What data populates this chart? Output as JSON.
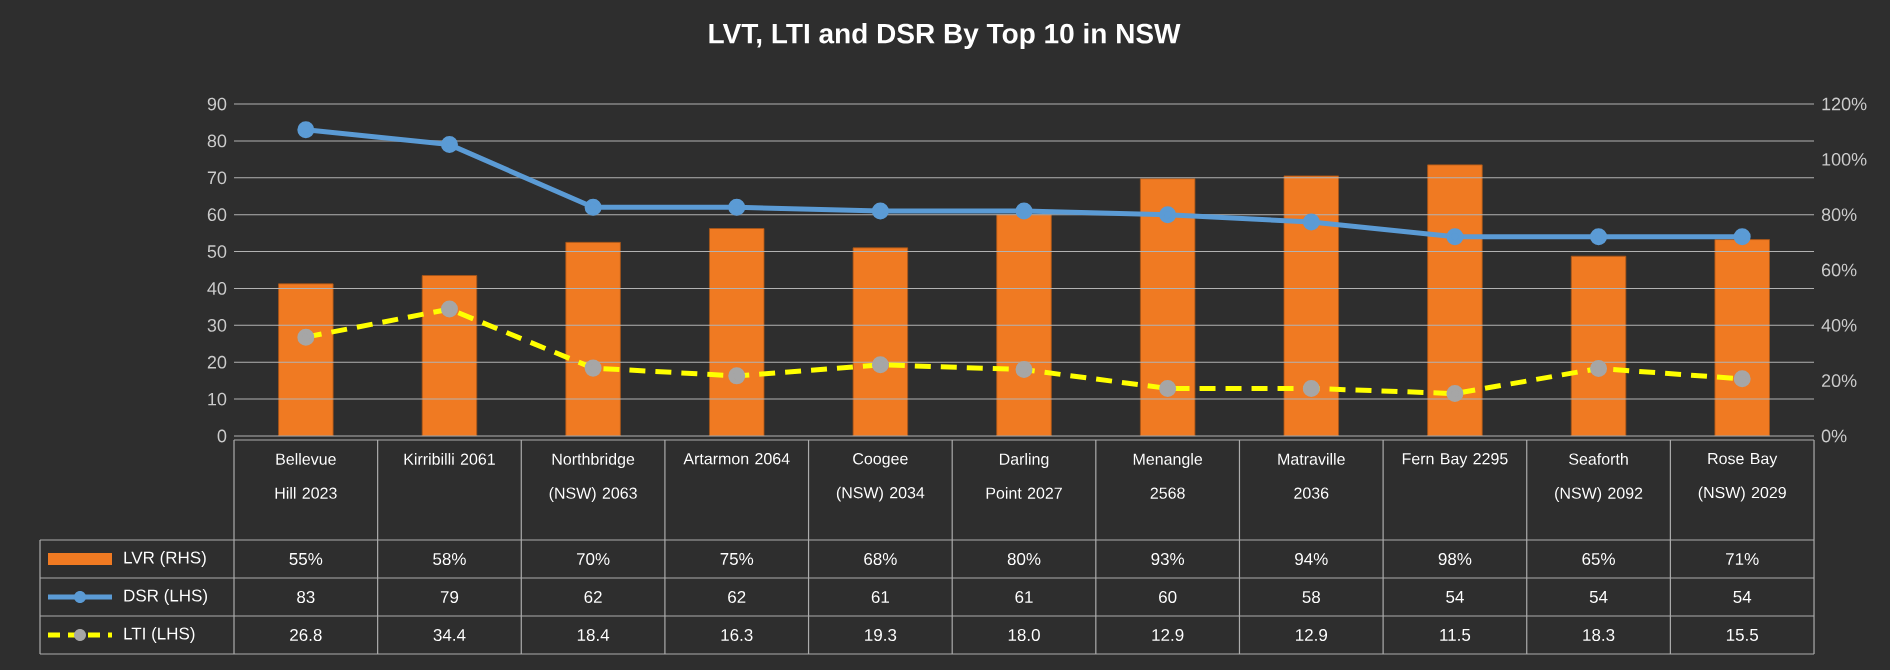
{
  "chart_data": {
    "type": "bar",
    "title": "LVT, LTI and DSR By Top 10 in NSW",
    "categories": [
      "Bellevue Hill 2023",
      "Kirribilli 2061",
      "Northbridge (NSW) 2063",
      "Artarmon 2064",
      "Coogee (NSW) 2034",
      "Darling Point 2027",
      "Menangle 2568",
      "Matraville 2036",
      "Fern Bay 2295",
      "Seaforth (NSW) 2092",
      "Rose Bay (NSW) 2029"
    ],
    "series": [
      {
        "name": "LVR (RHS)",
        "axis": "y2",
        "color": "#f07a22",
        "values": [
          55,
          58,
          70,
          75,
          68,
          80,
          93,
          94,
          98,
          65,
          71
        ],
        "value_labels": [
          "55%",
          "58%",
          "70%",
          "75%",
          "68%",
          "80%",
          "93%",
          "94%",
          "98%",
          "65%",
          "71%"
        ]
      },
      {
        "name": "DSR (LHS)",
        "type": "line",
        "color": "#5b9bd5",
        "marker": "circle",
        "line_style": "solid",
        "values": [
          83,
          79,
          62,
          62,
          61,
          61,
          60,
          58,
          54,
          54,
          54
        ],
        "value_labels": [
          "83",
          "79",
          "62",
          "62",
          "61",
          "61",
          "60",
          "58",
          "54",
          "54",
          "54"
        ]
      },
      {
        "name": "LTI (LHS)",
        "type": "line",
        "color": "#ffff00",
        "marker": "circle",
        "line_style": "dashed",
        "values": [
          26.8,
          34.4,
          18.4,
          16.3,
          19.3,
          18.0,
          12.9,
          12.9,
          11.5,
          18.3,
          15.5
        ],
        "value_labels": [
          "26.8",
          "34.4",
          "18.4",
          "16.3",
          "19.3",
          "18.0",
          "12.9",
          "12.9",
          "11.5",
          "18.3",
          "15.5"
        ]
      }
    ],
    "ylim": [
      0,
      90
    ],
    "yticks": [
      0,
      10,
      20,
      30,
      40,
      50,
      60,
      70,
      80,
      90
    ],
    "y2lim": [
      0,
      120
    ],
    "y2ticks": [
      {
        "value": 0,
        "label": "0%"
      },
      {
        "value": 20,
        "label": "20%"
      },
      {
        "value": 40,
        "label": "40%"
      },
      {
        "value": 60,
        "label": "60%"
      },
      {
        "value": 80,
        "label": "80%"
      },
      {
        "value": 100,
        "label": "100%"
      },
      {
        "value": 120,
        "label": "120%"
      }
    ],
    "grid": "y",
    "legend": "bottom"
  }
}
